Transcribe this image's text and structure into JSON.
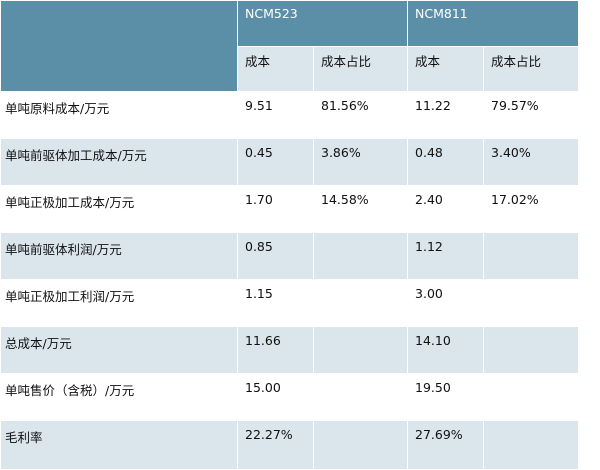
{
  "table": {
    "groups": [
      "NCM523",
      "NCM811"
    ],
    "subheaders": [
      "成本",
      "成本占比",
      "成本",
      "成本占比"
    ],
    "rows": [
      {
        "label": "单吨原料成本/万元",
        "cells": [
          "9.51",
          "81.56%",
          "11.22",
          "79.57%"
        ]
      },
      {
        "label": "单吨前驱体加工成本/万元",
        "cells": [
          "0.45",
          "3.86%",
          "0.48",
          "3.40%"
        ]
      },
      {
        "label": "单吨正极加工成本/万元",
        "cells": [
          "1.70",
          "14.58%",
          "2.40",
          "17.02%"
        ]
      },
      {
        "label": "单吨前驱体利润/万元",
        "cells": [
          "0.85",
          "",
          "1.12",
          ""
        ]
      },
      {
        "label": "单吨正极加工利润/万元",
        "cells": [
          "1.15",
          "",
          "3.00",
          ""
        ]
      },
      {
        "label": "总成本/万元",
        "cells": [
          "11.66",
          "",
          "14.10",
          ""
        ]
      },
      {
        "label": "单吨售价（含税）/万元",
        "cells": [
          "15.00",
          "",
          "19.50",
          ""
        ]
      },
      {
        "label": "毛利率",
        "cells": [
          "22.27%",
          "",
          "27.69%",
          ""
        ]
      }
    ]
  },
  "colors": {
    "header_bg": "#5b8fa8",
    "header_text": "#ffffff",
    "band_light": "#ffffff",
    "band_tint": "#dae5ec"
  }
}
